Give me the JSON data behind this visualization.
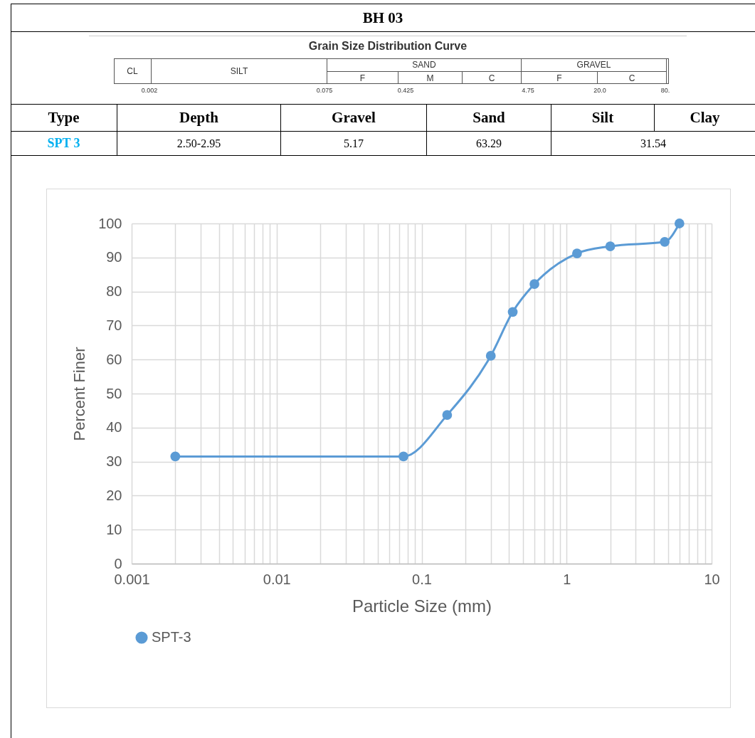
{
  "chart_data": {
    "type": "line",
    "title": "BH 03",
    "subtitle": "Grain Size Distribution Curve",
    "annotations": [
      "CL",
      "SILT",
      "SAND",
      "F",
      "M",
      "C",
      "GRAVEL",
      "F",
      "C",
      "0.002",
      "0.075",
      "0.425",
      "4.75",
      "20.0",
      "80.",
      "Type",
      "Depth",
      "Gravel",
      "Sand",
      "Silt",
      "Clay",
      "SPT 3",
      "2.50-2.95",
      "5.17",
      "63.29",
      "31.54"
    ],
    "xlabel": "Particle Size (mm)",
    "ylabel": "Percent Finer",
    "x": [
      0.002,
      0.075,
      0.15,
      0.3,
      0.425,
      0.6,
      1.18,
      2,
      4.75,
      6
    ],
    "series": [
      {
        "name": "SPT-3",
        "color": "#5b9bd5",
        "values": [
          31.5,
          31.5,
          43.7,
          61.1,
          74,
          82.2,
          91.2,
          93.3,
          94.6,
          100
        ]
      }
    ],
    "log": "x",
    "xlim": [
      0.001,
      10
    ],
    "xticks": [
      0.001,
      {
        "value": 0.002,
        "label": null
      },
      {
        "value": 0.003,
        "label": null
      },
      {
        "value": 0.004,
        "label": null
      },
      {
        "value": 0.005,
        "label": null
      },
      {
        "value": 0.006,
        "label": null
      },
      {
        "value": 0.007,
        "label": null
      },
      {
        "value": 0.008,
        "label": null
      },
      {
        "value": 0.009,
        "label": null
      },
      0.01,
      {
        "value": 0.02,
        "label": null
      },
      {
        "value": 0.03,
        "label": null
      },
      {
        "value": 0.04,
        "label": null
      },
      {
        "value": 0.05,
        "label": null
      },
      {
        "value": 0.06,
        "label": null
      },
      {
        "value": 0.07,
        "label": null
      },
      {
        "value": 0.08,
        "label": null
      },
      {
        "value": 0.09,
        "label": null
      },
      0.1,
      {
        "value": 0.2,
        "label": null
      },
      {
        "value": 0.3,
        "label": null
      },
      {
        "value": 0.4,
        "label": null
      },
      {
        "value": 0.5,
        "label": null
      },
      {
        "value": 0.6,
        "label": null
      },
      {
        "value": 0.7,
        "label": null
      },
      {
        "value": 0.8,
        "label": null
      },
      {
        "value": 0.9,
        "label": null
      },
      1,
      {
        "value": 2,
        "label": null
      },
      {
        "value": 3,
        "label": null
      },
      {
        "value": 4,
        "label": null
      },
      {
        "value": 5,
        "label": null
      },
      {
        "value": 6,
        "label": null
      },
      {
        "value": 7,
        "label": null
      },
      {
        "value": 8,
        "label": null
      },
      {
        "value": 9,
        "label": null
      },
      10
    ],
    "ylim": [
      0,
      100
    ],
    "yticks": [
      0,
      10,
      20,
      30,
      40,
      50,
      60,
      70,
      80,
      90,
      100
    ],
    "grid": true,
    "marker": "circle",
    "line_style": "solid",
    "legend": "bottom"
  }
}
